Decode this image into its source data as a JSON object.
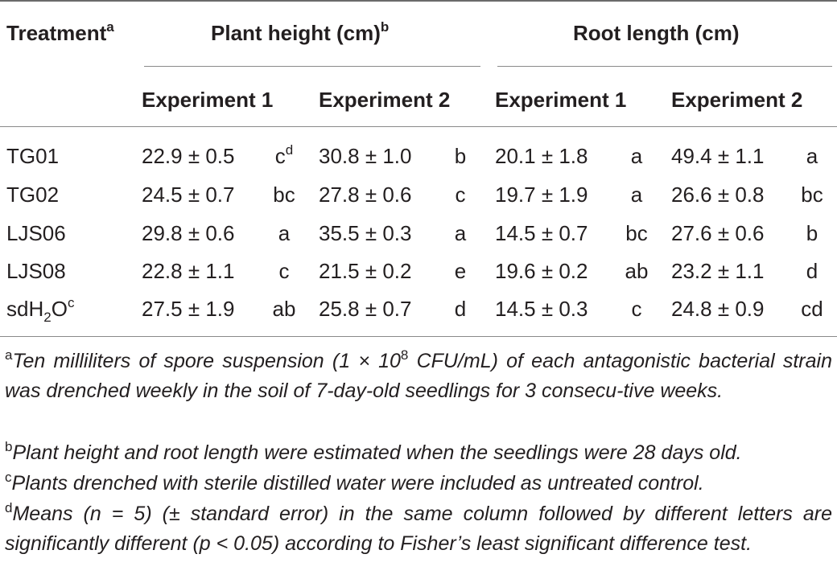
{
  "header": {
    "treatment": "Treatment",
    "treatment_mark": "a",
    "plant_height": "Plant height (cm)",
    "plant_height_mark": "b",
    "root_length": "Root length (cm)",
    "sub": [
      "Experiment 1",
      "Experiment 2",
      "Experiment 1",
      "Experiment 2"
    ]
  },
  "rows": [
    {
      "treatment": "TG01",
      "ph1": "22.9 ± 0.5",
      "ph1_l": "c",
      "ph1_mark": "d",
      "ph2": "30.8 ± 1.0",
      "ph2_l": "b",
      "rl1": "20.1 ± 1.8",
      "rl1_l": "a",
      "rl2": "49.4 ± 1.1",
      "rl2_l": "a"
    },
    {
      "treatment": "TG02",
      "ph1": "24.5 ± 0.7",
      "ph1_l": "bc",
      "ph2": "27.8 ± 0.6",
      "ph2_l": "c",
      "rl1": "19.7 ± 1.9",
      "rl1_l": "a",
      "rl2": "26.6 ± 0.8",
      "rl2_l": "bc"
    },
    {
      "treatment": "LJS06",
      "ph1": "29.8 ± 0.6",
      "ph1_l": "a",
      "ph2": "35.5 ± 0.3",
      "ph2_l": "a",
      "rl1": "14.5 ± 0.7",
      "rl1_l": "bc",
      "rl2": "27.6 ± 0.6",
      "rl2_l": "b"
    },
    {
      "treatment": "LJS08",
      "ph1": "22.8 ± 1.1",
      "ph1_l": "c",
      "ph2": "21.5 ± 0.2",
      "ph2_l": "e",
      "rl1": "19.6 ± 0.2",
      "rl1_l": "ab",
      "rl2": "23.2 ± 1.1",
      "rl2_l": "d"
    },
    {
      "treatment_parts": [
        "sdH",
        "2",
        "O",
        "c"
      ],
      "ph1": "27.5 ± 1.9",
      "ph1_l": "ab",
      "ph2": "25.8 ± 0.7",
      "ph2_l": "d",
      "rl1": "14.5 ± 0.3",
      "rl1_l": "c",
      "rl2": "24.8 ± 0.9",
      "rl2_l": "cd"
    }
  ],
  "footnotes": {
    "a_mark": "a",
    "a_text_1": "Ten milliliters of spore suspension (1 × 10",
    "a_exp": "8",
    "a_text_2": " CFU/mL) of each antagonistic bacterial strain was drenched weekly in the soil of 7-day-old seedlings for 3 consecu-tive weeks.",
    "b_mark": "b",
    "b_text": "Plant height and root length were estimated when the seedlings were 28 days old.",
    "c_mark": "c",
    "c_text": "Plants drenched with sterile distilled water were included as untreated control.",
    "d_mark": "d",
    "d_text": "Means (n = 5) (± standard error) in the same column followed by different letters are significantly different (p < 0.05) according to Fisher’s least significant difference test."
  }
}
